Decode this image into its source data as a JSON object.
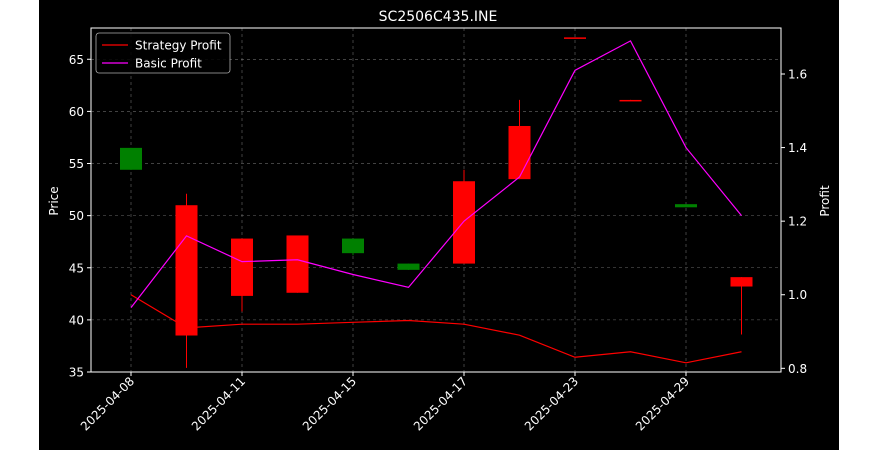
{
  "chart_data": {
    "type": "candlestick",
    "title": "SC2506C435.INE",
    "ylabel_left": "Price",
    "ylabel_right": "Profit",
    "xlabel": "",
    "ylim_left": [
      35,
      68
    ],
    "ylim_right": [
      0.79,
      1.725
    ],
    "yticks_left": [
      35,
      40,
      45,
      50,
      55,
      60,
      65
    ],
    "yticks_right": [
      0.8,
      1.0,
      1.2,
      1.4,
      1.6
    ],
    "ytick_labels_right": [
      "0.8",
      "1.0",
      "1.2",
      "1.4",
      "1.6"
    ],
    "grid": true,
    "legend_position": "top-left",
    "x_labels": [
      "2025-04-08",
      "2025-04-11",
      "2025-04-15",
      "2025-04-17",
      "2025-04-23",
      "2025-04-29"
    ],
    "x_label_indices": [
      0,
      2,
      4,
      6,
      8,
      10
    ],
    "candles": [
      {
        "open": 54.4,
        "close": 56.5,
        "high": 56.5,
        "low": 54.4
      },
      {
        "open": 51.0,
        "close": 38.5,
        "high": 52.1,
        "low": 35.4
      },
      {
        "open": 47.8,
        "close": 42.3,
        "high": 47.8,
        "low": 40.8
      },
      {
        "open": 48.1,
        "close": 42.6,
        "high": 48.1,
        "low": 42.6
      },
      {
        "open": 46.4,
        "close": 47.8,
        "high": 47.8,
        "low": 46.2
      },
      {
        "open": 44.8,
        "close": 45.4,
        "high": 45.4,
        "low": 44.8
      },
      {
        "open": 53.3,
        "close": 45.4,
        "high": 54.4,
        "low": 45.4
      },
      {
        "open": 58.6,
        "close": 53.5,
        "high": 61.1,
        "low": 53.5
      },
      {
        "open": 67.1,
        "close": 67.0,
        "high": 67.1,
        "low": 67.0
      },
      {
        "open": 61.1,
        "close": 61.0,
        "high": 61.1,
        "low": 61.0
      },
      {
        "open": 50.8,
        "close": 51.1,
        "high": 51.1,
        "low": 50.8
      },
      {
        "open": 44.1,
        "close": 43.2,
        "high": 44.1,
        "low": 38.6
      }
    ],
    "series": [
      {
        "name": "Strategy Profit",
        "axis": "right",
        "color": "#ff0000",
        "values": [
          1.0,
          0.91,
          0.92,
          0.92,
          0.925,
          0.93,
          0.92,
          0.89,
          0.83,
          0.845,
          0.815,
          0.845
        ]
      },
      {
        "name": "Basic Profit",
        "axis": "right",
        "color": "#ff00ff",
        "values": [
          0.965,
          1.16,
          1.09,
          1.095,
          1.055,
          1.02,
          1.2,
          1.32,
          1.61,
          1.69,
          1.4,
          1.215
        ]
      }
    ],
    "colors": {
      "up": "#008000",
      "down": "#ff0000",
      "background": "#000000",
      "axes": "#ffffff"
    }
  }
}
